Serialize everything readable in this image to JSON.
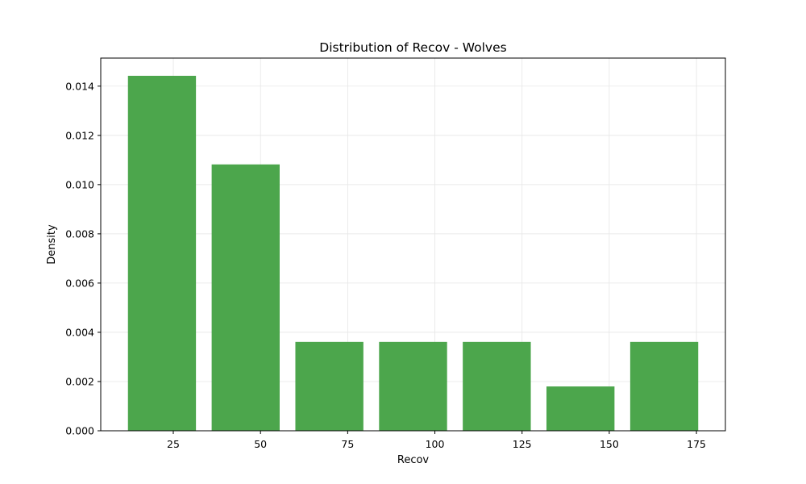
{
  "chart_data": {
    "type": "bar",
    "title": "Distribution of Recov - Wolves",
    "xlabel": "Recov",
    "ylabel": "Density",
    "bins": [
      {
        "x0": 12,
        "x1": 31.5,
        "value": 0.01442
      },
      {
        "x0": 36,
        "x1": 55.5,
        "value": 0.01082
      },
      {
        "x0": 60,
        "x1": 79.5,
        "value": 0.00361
      },
      {
        "x0": 84,
        "x1": 103.5,
        "value": 0.00361
      },
      {
        "x0": 108,
        "x1": 127.5,
        "value": 0.00361
      },
      {
        "x0": 132,
        "x1": 151.5,
        "value": 0.0018
      },
      {
        "x0": 156,
        "x1": 175.5,
        "value": 0.00361
      }
    ],
    "xlim": [
      4.2,
      183.3
    ],
    "ylim": [
      0,
      0.01514
    ],
    "xticks": [
      25,
      50,
      75,
      100,
      125,
      150,
      175
    ],
    "xtick_labels": [
      "25",
      "50",
      "75",
      "100",
      "125",
      "150",
      "175"
    ],
    "yticks": [
      0,
      0.002,
      0.004,
      0.006,
      0.008,
      0.01,
      0.012,
      0.014
    ],
    "ytick_labels": [
      "0.000",
      "0.002",
      "0.004",
      "0.006",
      "0.008",
      "0.010",
      "0.012",
      "0.014"
    ],
    "grid": true,
    "bar_color": "#4ca64c",
    "grid_color": "#e6e6e6"
  }
}
